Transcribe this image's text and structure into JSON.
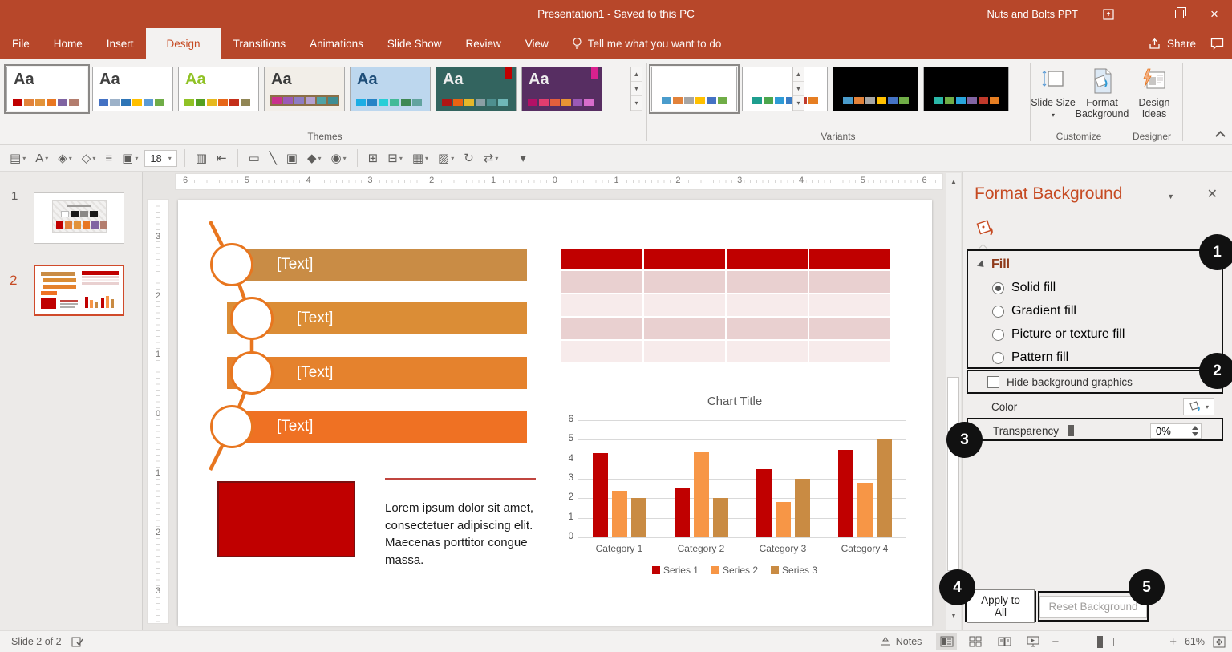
{
  "title_bar": {
    "title": "Presentation1 - Saved to this PC",
    "account": "Nuts and Bolts PPT"
  },
  "ribbon": {
    "tabs": [
      {
        "label": "File"
      },
      {
        "label": "Home"
      },
      {
        "label": "Insert"
      },
      {
        "label": "Design",
        "active": true
      },
      {
        "label": "Transitions"
      },
      {
        "label": "Animations"
      },
      {
        "label": "Slide Show"
      },
      {
        "label": "Review"
      },
      {
        "label": "View"
      }
    ],
    "tell_me": "Tell me what you want to do",
    "share_label": "Share"
  },
  "themes": {
    "label": "Themes",
    "aa_label": "Aa",
    "items": [
      {
        "name": "theme-current",
        "bg": "#FFFFFF",
        "aa_color": "#404040",
        "swatches": [
          "#C00000",
          "#E2823A",
          "#E2933A",
          "#E87722",
          "#8064A2",
          "#B37D6E"
        ],
        "selected": true
      },
      {
        "name": "theme-office",
        "bg": "#FFFFFF",
        "aa_color": "#404040",
        "swatches": [
          "#4472C4",
          "#9DB2C9",
          "#2E75B6",
          "#FFC000",
          "#5B9BD5",
          "#70AD47"
        ]
      },
      {
        "name": "theme-facet",
        "bg": "#FFFFFF",
        "aa_color": "#90C226",
        "swatches": [
          "#90C226",
          "#54A021",
          "#E6B91E",
          "#E76618",
          "#C42F1A",
          "#918655"
        ]
      },
      {
        "name": "theme-wood",
        "bg": "#F2EEE8",
        "aa_color": "#3B3B3B",
        "strip": "#8B6F47",
        "swatches": [
          "#C9318C",
          "#9B59B6",
          "#8E7CC3",
          "#B5A0D0",
          "#4FA3A5",
          "#3E8D93"
        ]
      },
      {
        "name": "theme-integral",
        "bg": "#BDD7EE",
        "aa_color": "#1F4E79",
        "pattern": true,
        "swatches": [
          "#1CADE4",
          "#2683C6",
          "#27CED7",
          "#42BA97",
          "#3E8853",
          "#62A39F"
        ]
      },
      {
        "name": "theme-ion",
        "bg": "#33645F",
        "aa_color": "#EDEDED",
        "accent_top": "#C00000",
        "swatches": [
          "#B01513",
          "#EA6312",
          "#E6B729",
          "#8A9FA5",
          "#4E8F8F",
          "#6FB7B7"
        ]
      },
      {
        "name": "theme-ion-boardroom",
        "bg": "#572E62",
        "aa_color": "#EDEDED",
        "accent_top": "#D9218E",
        "swatches": [
          "#B31166",
          "#E33D6F",
          "#E45F3C",
          "#E99434",
          "#9B59B6",
          "#D86DCB"
        ]
      }
    ]
  },
  "variants": {
    "label": "Variants",
    "items": [
      {
        "bg": "#FFFFFF",
        "swatches": [
          "#4A9CCC",
          "#E2823A",
          "#A5A5A5",
          "#FFC000",
          "#4472C4",
          "#70AD47"
        ],
        "selected": true
      },
      {
        "bg": "#FFFFFF",
        "swatches": [
          "#1E9E8E",
          "#4CA64C",
          "#2E9BD6",
          "#3A7CC4",
          "#C0392B",
          "#E67E22"
        ]
      },
      {
        "bg": "#000000",
        "swatches": [
          "#4A9CCC",
          "#E2823A",
          "#A5A5A5",
          "#FFC000",
          "#4472C4",
          "#70AD47"
        ]
      },
      {
        "bg": "#000000",
        "swatches": [
          "#2AB8A8",
          "#70AD47",
          "#29A5DC",
          "#8064A2",
          "#C0392B",
          "#E67E22"
        ]
      }
    ]
  },
  "customize": {
    "slide_size": "Slide Size",
    "format_background": "Format Background",
    "design_ideas": "Design Ideas",
    "customize_label": "Customize",
    "designer_label": "Designer"
  },
  "toolbar": {
    "font_size": "18",
    "icons": [
      {
        "name": "new-slide-icon",
        "glyph": "▤",
        "dropdown": true
      },
      {
        "name": "font-color-icon",
        "glyph": "A",
        "dropdown": true
      },
      {
        "name": "shape-fill-icon",
        "glyph": "◈",
        "dropdown": true
      },
      {
        "name": "shape-outline-icon",
        "glyph": "◇",
        "dropdown": true
      },
      {
        "name": "align-objects-icon",
        "glyph": "≡",
        "dropdown": false
      },
      {
        "name": "change-colors-icon",
        "glyph": "▣",
        "dropdown": true
      },
      {
        "type": "fontsize"
      },
      {
        "sep": true
      },
      {
        "name": "bullet-list-icon",
        "glyph": "▥",
        "dropdown": false
      },
      {
        "name": "indent-icon",
        "glyph": "⇤",
        "dropdown": false
      },
      {
        "sep": true
      },
      {
        "name": "rectangle-icon",
        "glyph": "▭",
        "dropdown": false
      },
      {
        "name": "line-icon",
        "glyph": "╲",
        "dropdown": false
      },
      {
        "name": "text-box-icon",
        "glyph": "▣",
        "dropdown": false
      },
      {
        "name": "shapes-icon",
        "glyph": "◆",
        "dropdown": true
      },
      {
        "name": "merge-shapes-icon",
        "glyph": "◉",
        "dropdown": true
      },
      {
        "sep": true
      },
      {
        "name": "table-icon",
        "glyph": "⊞",
        "dropdown": false
      },
      {
        "name": "cells-icon",
        "glyph": "⊟",
        "dropdown": true
      },
      {
        "name": "picture-layout-icon",
        "glyph": "▦",
        "dropdown": true
      },
      {
        "name": "picture-icon",
        "glyph": "▨",
        "dropdown": true
      },
      {
        "name": "rotate-icon",
        "glyph": "↻",
        "dropdown": false
      },
      {
        "name": "replace-icon",
        "glyph": "⇄",
        "dropdown": true
      },
      {
        "sep": true
      },
      {
        "name": "toolbar-more-icon",
        "glyph": "▾",
        "dropdown": false
      }
    ]
  },
  "slides_panel": {
    "slides": [
      {
        "number": "1",
        "selected": false
      },
      {
        "number": "2",
        "selected": true
      }
    ]
  },
  "rulers": {
    "horizontal": [
      "6",
      "5",
      "4",
      "3",
      "2",
      "1",
      "0",
      "1",
      "2",
      "3",
      "4",
      "5",
      "6"
    ],
    "vertical": [
      "3",
      "2",
      "1",
      "0",
      "1",
      "2",
      "3"
    ]
  },
  "slide": {
    "smartart": {
      "connector_color": "#E8761F",
      "items": [
        {
          "label": "[Text]",
          "color": "#C98C45"
        },
        {
          "label": "[Text]",
          "color": "#DB8D36"
        },
        {
          "label": "[Text]",
          "color": "#E5822D"
        },
        {
          "label": "[Text]",
          "color": "#EF7123"
        }
      ]
    },
    "table": {
      "columns": 4,
      "body_rows": 4,
      "header_color": "#C00000",
      "row_colors": [
        "#E9D0D0",
        "#F7EBEB"
      ]
    },
    "shape_color": "#C00000",
    "text_block": "Lorem ipsum dolor sit amet, consectetuer adipiscing elit. Maecenas porttitor congue massa."
  },
  "chart_data": {
    "type": "bar",
    "title": "Chart Title",
    "categories": [
      "Category 1",
      "Category 2",
      "Category 3",
      "Category 4"
    ],
    "series": [
      {
        "name": "Series 1",
        "color": "#C00000",
        "values": [
          4.3,
          2.5,
          3.5,
          4.5
        ]
      },
      {
        "name": "Series 2",
        "color": "#F79646",
        "values": [
          2.4,
          4.4,
          1.8,
          2.8
        ]
      },
      {
        "name": "Series 3",
        "color": "#C98B43",
        "values": [
          2.0,
          2.0,
          3.0,
          5.0
        ]
      }
    ],
    "ylim": [
      0,
      6
    ],
    "yticks": [
      0,
      1,
      2,
      3,
      4,
      5,
      6
    ],
    "grid": true,
    "legend_position": "bottom"
  },
  "format_pane": {
    "title": "Format Background",
    "fill_heading": "Fill",
    "fill_options": [
      {
        "label": "Solid fill",
        "selected": true
      },
      {
        "label": "Gradient fill",
        "selected": false
      },
      {
        "label": "Picture or texture fill",
        "selected": false
      },
      {
        "label": "Pattern fill",
        "selected": false
      }
    ],
    "hide_bg_label": "Hide background graphics",
    "hide_bg_checked": false,
    "color_label": "Color",
    "transparency_label": "Transparency",
    "transparency_value": "0%",
    "apply_all_label": "Apply to All",
    "reset_label": "Reset Background"
  },
  "callouts": [
    {
      "number": "1"
    },
    {
      "number": "2"
    },
    {
      "number": "3"
    },
    {
      "number": "4"
    },
    {
      "number": "5"
    }
  ],
  "status_bar": {
    "slide_info": "Slide 2 of 2",
    "notes_label": "Notes",
    "zoom_value": "61%",
    "zoom_out": "−",
    "zoom_in": "+"
  }
}
